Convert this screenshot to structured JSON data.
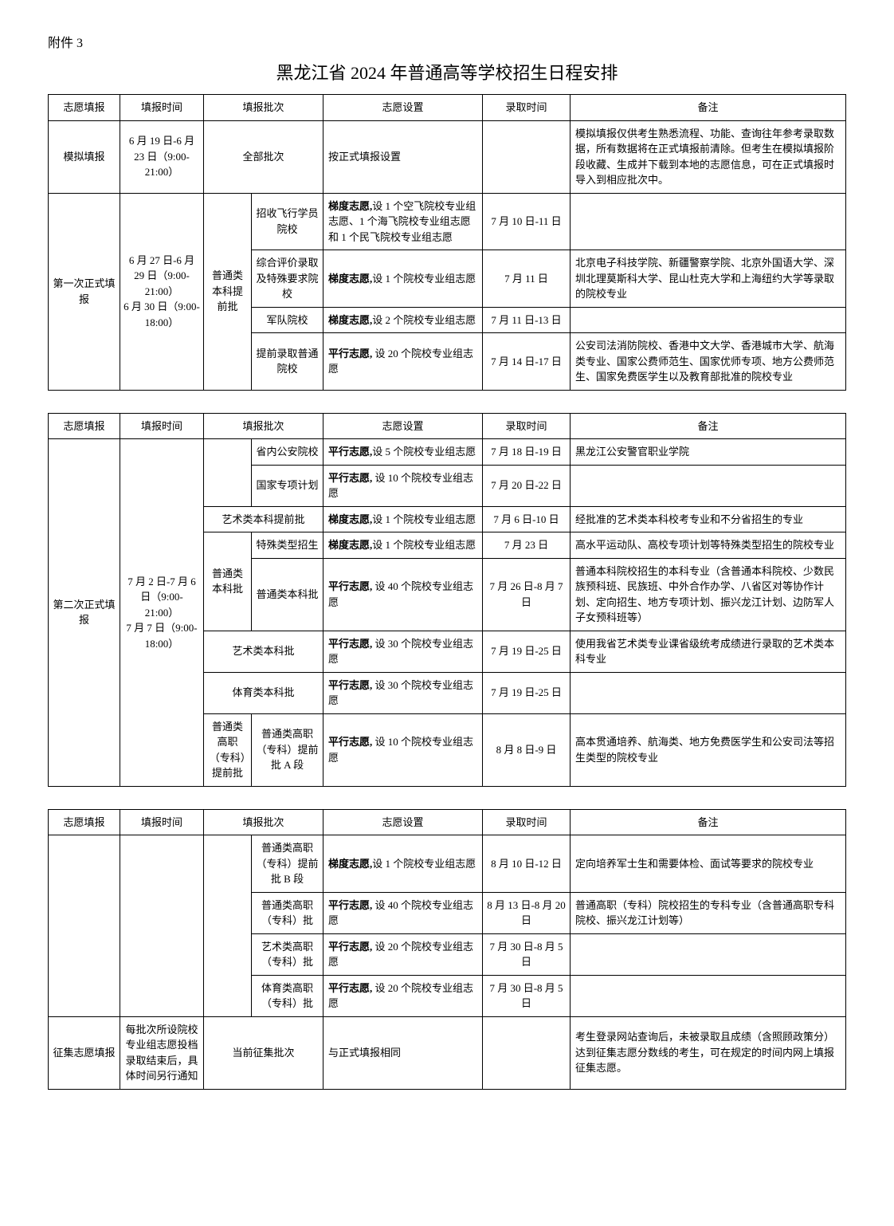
{
  "attachment_label": "附件 3",
  "main_title": "黑龙江省 2024 年普通高等学校招生日程安排",
  "headers": {
    "col1": "志愿填报",
    "col2": "填报时间",
    "col3": "填报批次",
    "col4": "志愿设置",
    "col5": "录取时间",
    "col6": "备注"
  },
  "table1": {
    "r1": {
      "stage": "模拟填报",
      "time": "6 月 19 日-6 月 23 日（9:00-21:00）",
      "batch": "全部批次",
      "setting": "按正式填报设置",
      "admit": "",
      "note": "模拟填报仅供考生熟悉流程、功能、查询往年参考录取数据，所有数据将在正式填报前清除。但考生在模拟填报阶段收藏、生成并下载到本地的志愿信息，可在正式填报时导入到相应批次中。"
    },
    "r2": {
      "stage": "第一次正式填报",
      "time1": "6 月 27 日-6 月 29 日（9:00-21:00）",
      "time2": "6 月 30 日（9:00-18:00）",
      "batch_group": "普通类本科提前批",
      "sub1": {
        "batch": "招收飞行学员院校",
        "setting_prefix": "梯度志愿,",
        "setting_rest": "设 1 个空飞院校专业组志愿、1 个海飞院校专业组志愿和 1 个民飞院校专业组志愿",
        "admit": "7 月 10 日-11 日",
        "note": ""
      },
      "sub2": {
        "batch": "综合评价录取及特殊要求院校",
        "setting_prefix": "梯度志愿,",
        "setting_rest": "设 1 个院校专业组志愿",
        "admit": "7 月 11 日",
        "note": "北京电子科技学院、新疆警察学院、北京外国语大学、深圳北理莫斯科大学、昆山杜克大学和上海纽约大学等录取的院校专业"
      },
      "sub3": {
        "batch": "军队院校",
        "setting_prefix": "梯度志愿,",
        "setting_rest": "设 2 个院校专业组志愿",
        "admit": "7 月 11 日-13 日",
        "note": ""
      },
      "sub4": {
        "batch": "提前录取普通院校",
        "setting_prefix": "平行志愿,",
        "setting_rest": " 设 20 个院校专业组志愿",
        "admit": "7 月 14 日-17 日",
        "note": "公安司法消防院校、香港中文大学、香港城市大学、航海类专业、国家公费师范生、国家优师专项、地方公费师范生、国家免费医学生以及教育部批准的院校专业"
      }
    }
  },
  "table2": {
    "r1": {
      "stage": "第二次正式填报",
      "time1": "7 月 2 日-7 月 6 日（9:00-21:00）",
      "time2": "7 月 7 日（9:00-18:00）",
      "sub1": {
        "batch_parent": "",
        "batch": "省内公安院校",
        "setting_prefix": "平行志愿,",
        "setting_rest": "设 5 个院校专业组志愿",
        "admit": "7 月 18 日-19 日",
        "note": "黑龙江公安警官职业学院"
      },
      "sub2": {
        "batch": "国家专项计划",
        "setting_prefix": "平行志愿,",
        "setting_rest": " 设 10 个院校专业组志愿",
        "admit": "7 月 20 日-22 日",
        "note": ""
      },
      "sub3": {
        "batch": "艺术类本科提前批",
        "setting_prefix": "梯度志愿,",
        "setting_rest": "设 1 个院校专业组志愿",
        "admit": "7 月 6 日-10 日",
        "note": "经批准的艺术类本科校考专业和不分省招生的专业"
      },
      "sub4": {
        "batch_parent": "普通类本科批",
        "batch": "特殊类型招生",
        "setting_prefix": "梯度志愿,",
        "setting_rest": "设 1 个院校专业组志愿",
        "admit": "7 月 23 日",
        "note": "高水平运动队、高校专项计划等特殊类型招生的院校专业"
      },
      "sub5": {
        "batch": "普通类本科批",
        "setting_prefix": "平行志愿,",
        "setting_rest": " 设 40 个院校专业组志愿",
        "admit": "7 月 26 日-8 月 7 日",
        "note": "普通本科院校招生的本科专业（含普通本科院校、少数民族预科班、民族班、中外合作办学、八省区对等协作计划、定向招生、地方专项计划、振兴龙江计划、边防军人子女预科班等）"
      },
      "sub6": {
        "batch": "艺术类本科批",
        "setting_prefix": "平行志愿,",
        "setting_rest": " 设 30 个院校专业组志愿",
        "admit": "7 月 19 日-25 日",
        "note": "使用我省艺术类专业课省级统考成绩进行录取的艺术类本科专业"
      },
      "sub7": {
        "batch": "体育类本科批",
        "setting_prefix": "平行志愿,",
        "setting_rest": " 设 30 个院校专业组志愿",
        "admit": "7 月 19 日-25 日",
        "note": ""
      },
      "sub8": {
        "batch_parent": "普通类高职（专科）提前批",
        "batch": "普通类高职（专科）提前批 A 段",
        "setting_prefix": "平行志愿,",
        "setting_rest": " 设 10 个院校专业组志愿",
        "admit": "8 月 8 日-9 日",
        "note": "高本贯通培养、航海类、地方免费医学生和公安司法等招生类型的院校专业"
      }
    }
  },
  "table3": {
    "r1": {
      "sub1": {
        "batch": "普通类高职（专科）提前批 B 段",
        "setting_prefix": "梯度志愿,",
        "setting_rest": "设 1 个院校专业组志愿",
        "admit": "8 月 10 日-12 日",
        "note": "定向培养军士生和需要体检、面试等要求的院校专业"
      },
      "sub2": {
        "batch": "普通类高职（专科）批",
        "setting_prefix": "平行志愿,",
        "setting_rest": " 设 40 个院校专业组志愿",
        "admit": "8 月 13 日-8 月 20 日",
        "note": "普通高职（专科）院校招生的专科专业（含普通高职专科院校、振兴龙江计划等）"
      },
      "sub3": {
        "batch": "艺术类高职（专科）批",
        "setting_prefix": "平行志愿,",
        "setting_rest": " 设 20 个院校专业组志愿",
        "admit": "7 月 30 日-8 月 5 日",
        "note": ""
      },
      "sub4": {
        "batch": "体育类高职（专科）批",
        "setting_prefix": "平行志愿,",
        "setting_rest": " 设 20 个院校专业组志愿",
        "admit": "7 月 30 日-8 月 5 日",
        "note": ""
      }
    },
    "r2": {
      "stage": "征集志愿填报",
      "time": "每批次所设院校专业组志愿投档录取结束后，具体时间另行通知",
      "batch": "当前征集批次",
      "setting": "与正式填报相同",
      "admit": "",
      "note": "考生登录网站查询后，未被录取且成绩（含照顾政策分）达到征集志愿分数线的考生，可在规定的时间内网上填报征集志愿。"
    }
  }
}
